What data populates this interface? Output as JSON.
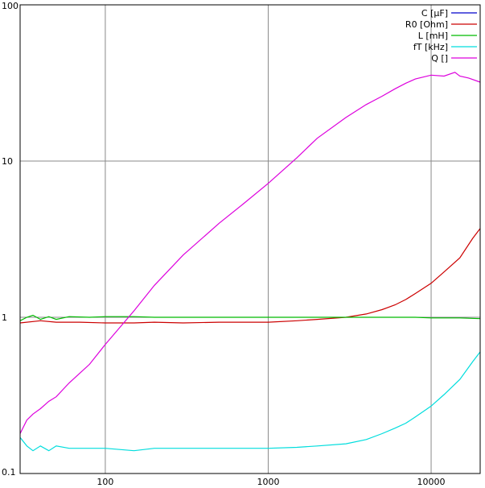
{
  "chart_data": {
    "type": "line",
    "x_scale": "log",
    "y_scale": "log",
    "xlim": [
      30,
      20000
    ],
    "ylim": [
      0.1,
      100
    ],
    "grid": true,
    "legend_placement": "top-right",
    "x_ticks": [
      {
        "value": 100,
        "label": "100"
      },
      {
        "value": 1000,
        "label": "1000"
      },
      {
        "value": 10000,
        "label": "10000"
      }
    ],
    "y_ticks": [
      {
        "value": 100,
        "label": "100"
      },
      {
        "value": 10,
        "label": "10"
      },
      {
        "value": 1,
        "label": "1"
      },
      {
        "value": 0.1,
        "label": "0.1"
      }
    ],
    "series": [
      {
        "name": "C [µF]",
        "color": "#0000cc",
        "points": []
      },
      {
        "name": "R0 [Ohm]",
        "color": "#cc0000",
        "points": [
          [
            30,
            0.92
          ],
          [
            40,
            0.95
          ],
          [
            50,
            0.93
          ],
          [
            70,
            0.93
          ],
          [
            100,
            0.92
          ],
          [
            150,
            0.92
          ],
          [
            200,
            0.93
          ],
          [
            300,
            0.92
          ],
          [
            500,
            0.93
          ],
          [
            700,
            0.93
          ],
          [
            1000,
            0.93
          ],
          [
            1500,
            0.95
          ],
          [
            2000,
            0.97
          ],
          [
            3000,
            1.0
          ],
          [
            4000,
            1.05
          ],
          [
            5000,
            1.12
          ],
          [
            6000,
            1.2
          ],
          [
            7000,
            1.3
          ],
          [
            8000,
            1.42
          ],
          [
            10000,
            1.65
          ],
          [
            12000,
            1.95
          ],
          [
            15000,
            2.4
          ],
          [
            18000,
            3.2
          ],
          [
            20000,
            3.7
          ]
        ]
      },
      {
        "name": "L [mH]",
        "color": "#00bb00",
        "points": [
          [
            30,
            0.95
          ],
          [
            33,
            1.0
          ],
          [
            36,
            1.03
          ],
          [
            40,
            0.97
          ],
          [
            45,
            1.01
          ],
          [
            50,
            0.97
          ],
          [
            60,
            1.01
          ],
          [
            80,
            1.0
          ],
          [
            100,
            1.01
          ],
          [
            150,
            1.01
          ],
          [
            200,
            1.0
          ],
          [
            500,
            1.0
          ],
          [
            1000,
            1.0
          ],
          [
            3000,
            1.0
          ],
          [
            8000,
            1.0
          ],
          [
            10000,
            0.99
          ],
          [
            15000,
            0.99
          ],
          [
            20000,
            0.98
          ]
        ]
      },
      {
        "name": "fT [kHz]",
        "color": "#00dddd",
        "points": [
          [
            30,
            0.17
          ],
          [
            33,
            0.15
          ],
          [
            36,
            0.14
          ],
          [
            40,
            0.15
          ],
          [
            45,
            0.14
          ],
          [
            50,
            0.15
          ],
          [
            60,
            0.145
          ],
          [
            80,
            0.145
          ],
          [
            100,
            0.145
          ],
          [
            150,
            0.14
          ],
          [
            200,
            0.145
          ],
          [
            300,
            0.145
          ],
          [
            500,
            0.145
          ],
          [
            700,
            0.145
          ],
          [
            1000,
            0.145
          ],
          [
            1500,
            0.147
          ],
          [
            2000,
            0.15
          ],
          [
            3000,
            0.155
          ],
          [
            4000,
            0.165
          ],
          [
            5000,
            0.18
          ],
          [
            6000,
            0.195
          ],
          [
            7000,
            0.21
          ],
          [
            8000,
            0.23
          ],
          [
            10000,
            0.27
          ],
          [
            12000,
            0.32
          ],
          [
            15000,
            0.4
          ],
          [
            18000,
            0.52
          ],
          [
            20000,
            0.6
          ]
        ]
      },
      {
        "name": "Q []",
        "color": "#dd00dd",
        "points": [
          [
            30,
            0.18
          ],
          [
            33,
            0.22
          ],
          [
            36,
            0.24
          ],
          [
            40,
            0.26
          ],
          [
            45,
            0.29
          ],
          [
            50,
            0.31
          ],
          [
            60,
            0.38
          ],
          [
            70,
            0.44
          ],
          [
            80,
            0.5
          ],
          [
            100,
            0.67
          ],
          [
            150,
            1.1
          ],
          [
            200,
            1.6
          ],
          [
            300,
            2.5
          ],
          [
            500,
            4.0
          ],
          [
            700,
            5.3
          ],
          [
            1000,
            7.2
          ],
          [
            1500,
            10.5
          ],
          [
            2000,
            14.0
          ],
          [
            3000,
            19.0
          ],
          [
            4000,
            23.0
          ],
          [
            5000,
            26.0
          ],
          [
            6000,
            29.0
          ],
          [
            7000,
            31.5
          ],
          [
            8000,
            33.5
          ],
          [
            10000,
            35.5
          ],
          [
            12000,
            35.0
          ],
          [
            14000,
            37.0
          ],
          [
            15000,
            35.0
          ],
          [
            17000,
            34.0
          ],
          [
            20000,
            32.0
          ]
        ]
      }
    ]
  }
}
